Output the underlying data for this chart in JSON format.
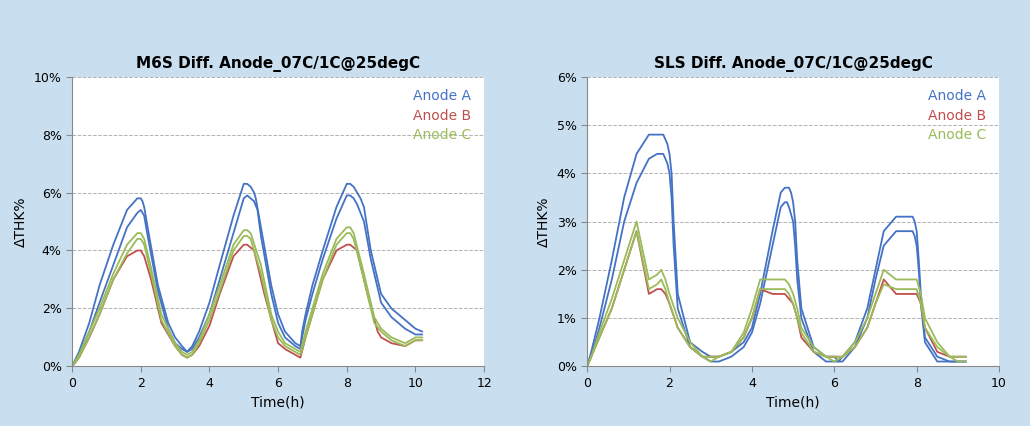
{
  "left_title": "M6S Diff. Anode_07C/1C@25degC",
  "right_title": "SLS Diff. Anode_07C/1C@25degC",
  "xlabel": "Time(h)",
  "ylabel": "ΔTHK%",
  "colors": {
    "A": "#4472C4",
    "B": "#C0504D",
    "C": "#9BBB59"
  },
  "legend_labels": [
    "Anode A",
    "Anode B",
    "Anode C"
  ],
  "background": "#C9DFF0",
  "plot_bg": "#FFFFFF",
  "left": {
    "xlim": [
      0,
      12
    ],
    "ylim": [
      0,
      0.1
    ],
    "yticks": [
      0,
      0.02,
      0.04,
      0.06,
      0.08,
      0.1
    ],
    "xticks": [
      0,
      2,
      4,
      6,
      8,
      10,
      12
    ],
    "series_A1": {
      "x": [
        0,
        0.2,
        0.5,
        0.8,
        1.2,
        1.6,
        1.9,
        2.0,
        2.05,
        2.1,
        2.2,
        2.5,
        2.8,
        3.0,
        3.2,
        3.35,
        3.5,
        3.7,
        4.0,
        4.3,
        4.7,
        5.0,
        5.1,
        5.2,
        5.3,
        5.35,
        5.5,
        5.8,
        6.0,
        6.2,
        6.5,
        6.65,
        6.7,
        6.8,
        7.0,
        7.3,
        7.7,
        8.0,
        8.1,
        8.2,
        8.3,
        8.4,
        8.5,
        8.7,
        9.0,
        9.3,
        9.7,
        10.0,
        10.2
      ],
      "y": [
        0,
        0.005,
        0.015,
        0.028,
        0.042,
        0.054,
        0.058,
        0.058,
        0.057,
        0.055,
        0.048,
        0.028,
        0.015,
        0.01,
        0.007,
        0.005,
        0.007,
        0.012,
        0.022,
        0.035,
        0.052,
        0.063,
        0.063,
        0.062,
        0.06,
        0.058,
        0.048,
        0.028,
        0.018,
        0.012,
        0.008,
        0.007,
        0.012,
        0.018,
        0.028,
        0.04,
        0.055,
        0.063,
        0.063,
        0.062,
        0.06,
        0.058,
        0.055,
        0.04,
        0.025,
        0.02,
        0.016,
        0.013,
        0.012
      ]
    },
    "series_A2": {
      "x": [
        0,
        0.2,
        0.5,
        0.8,
        1.2,
        1.6,
        1.9,
        2.0,
        2.1,
        2.2,
        2.5,
        2.8,
        3.0,
        3.2,
        3.35,
        3.5,
        3.7,
        4.0,
        4.3,
        4.7,
        5.0,
        5.1,
        5.2,
        5.3,
        5.4,
        5.5,
        5.8,
        6.0,
        6.2,
        6.5,
        6.65,
        6.7,
        6.8,
        7.0,
        7.3,
        7.7,
        8.0,
        8.1,
        8.2,
        8.3,
        8.4,
        8.5,
        8.7,
        9.0,
        9.3,
        9.7,
        10.0,
        10.2
      ],
      "y": [
        0,
        0.004,
        0.012,
        0.022,
        0.035,
        0.048,
        0.053,
        0.054,
        0.052,
        0.045,
        0.026,
        0.013,
        0.008,
        0.006,
        0.005,
        0.006,
        0.01,
        0.018,
        0.03,
        0.046,
        0.058,
        0.059,
        0.058,
        0.057,
        0.054,
        0.045,
        0.025,
        0.015,
        0.01,
        0.007,
        0.006,
        0.01,
        0.016,
        0.025,
        0.037,
        0.051,
        0.059,
        0.059,
        0.058,
        0.056,
        0.053,
        0.05,
        0.037,
        0.022,
        0.017,
        0.013,
        0.011,
        0.011
      ]
    },
    "series_B": {
      "x": [
        0,
        0.2,
        0.5,
        0.8,
        1.2,
        1.6,
        1.9,
        2.0,
        2.1,
        2.3,
        2.6,
        3.0,
        3.2,
        3.35,
        3.5,
        3.7,
        4.0,
        4.3,
        4.7,
        5.0,
        5.1,
        5.3,
        5.6,
        5.9,
        6.0,
        6.2,
        6.5,
        6.65,
        6.8,
        7.0,
        7.3,
        7.7,
        8.0,
        8.1,
        8.3,
        8.6,
        8.9,
        9.0,
        9.3,
        9.7,
        10.0,
        10.2
      ],
      "y": [
        0,
        0.003,
        0.01,
        0.018,
        0.03,
        0.038,
        0.04,
        0.04,
        0.038,
        0.03,
        0.015,
        0.007,
        0.004,
        0.003,
        0.004,
        0.007,
        0.014,
        0.025,
        0.038,
        0.042,
        0.042,
        0.04,
        0.025,
        0.012,
        0.008,
        0.006,
        0.004,
        0.003,
        0.01,
        0.018,
        0.03,
        0.04,
        0.042,
        0.042,
        0.04,
        0.025,
        0.012,
        0.01,
        0.008,
        0.007,
        0.009,
        0.009
      ]
    },
    "series_C1": {
      "x": [
        0,
        0.2,
        0.5,
        0.8,
        1.2,
        1.6,
        1.9,
        2.0,
        2.1,
        2.3,
        2.6,
        3.0,
        3.2,
        3.35,
        3.5,
        3.7,
        4.0,
        4.3,
        4.7,
        5.0,
        5.1,
        5.2,
        5.5,
        5.8,
        6.0,
        6.2,
        6.5,
        6.65,
        6.8,
        7.0,
        7.3,
        7.7,
        8.0,
        8.1,
        8.2,
        8.5,
        8.8,
        9.0,
        9.3,
        9.7,
        10.0,
        10.2
      ],
      "y": [
        0,
        0.004,
        0.012,
        0.02,
        0.032,
        0.042,
        0.046,
        0.046,
        0.044,
        0.034,
        0.018,
        0.008,
        0.005,
        0.004,
        0.005,
        0.009,
        0.018,
        0.028,
        0.042,
        0.047,
        0.047,
        0.046,
        0.035,
        0.018,
        0.012,
        0.008,
        0.006,
        0.005,
        0.012,
        0.02,
        0.032,
        0.044,
        0.048,
        0.048,
        0.046,
        0.032,
        0.017,
        0.013,
        0.01,
        0.008,
        0.01,
        0.01
      ]
    },
    "series_C2": {
      "x": [
        0,
        0.2,
        0.5,
        0.8,
        1.2,
        1.6,
        1.9,
        2.0,
        2.1,
        2.3,
        2.6,
        3.0,
        3.2,
        3.35,
        3.5,
        3.7,
        4.0,
        4.3,
        4.7,
        5.0,
        5.1,
        5.2,
        5.5,
        5.8,
        6.0,
        6.2,
        6.5,
        6.65,
        6.8,
        7.0,
        7.3,
        7.7,
        8.0,
        8.1,
        8.2,
        8.5,
        8.8,
        9.0,
        9.3,
        9.7,
        10.0,
        10.2
      ],
      "y": [
        0,
        0.003,
        0.01,
        0.018,
        0.03,
        0.039,
        0.044,
        0.044,
        0.042,
        0.032,
        0.016,
        0.007,
        0.004,
        0.003,
        0.004,
        0.008,
        0.016,
        0.026,
        0.04,
        0.045,
        0.045,
        0.044,
        0.032,
        0.016,
        0.01,
        0.007,
        0.005,
        0.004,
        0.01,
        0.018,
        0.03,
        0.042,
        0.046,
        0.046,
        0.044,
        0.03,
        0.015,
        0.012,
        0.009,
        0.007,
        0.009,
        0.009
      ]
    }
  },
  "right": {
    "xlim": [
      0,
      10
    ],
    "ylim": [
      0,
      0.06
    ],
    "yticks": [
      0,
      0.01,
      0.02,
      0.03,
      0.04,
      0.05,
      0.06
    ],
    "xticks": [
      0,
      2,
      4,
      6,
      8,
      10
    ],
    "series_A1": {
      "x": [
        0,
        0.1,
        0.3,
        0.6,
        0.9,
        1.2,
        1.5,
        1.7,
        1.8,
        1.85,
        1.9,
        1.95,
        2.0,
        2.05,
        2.1,
        2.2,
        2.5,
        2.8,
        3.0,
        3.2,
        3.5,
        3.8,
        4.0,
        4.2,
        4.5,
        4.7,
        4.8,
        4.85,
        4.9,
        4.95,
        5.0,
        5.05,
        5.1,
        5.2,
        5.5,
        5.8,
        6.0,
        6.1,
        6.2,
        6.5,
        6.8,
        7.0,
        7.2,
        7.5,
        7.8,
        7.9,
        7.95,
        8.0,
        8.05,
        8.1,
        8.2,
        8.5,
        8.8,
        9.0,
        9.2
      ],
      "y": [
        0,
        0.003,
        0.01,
        0.022,
        0.035,
        0.044,
        0.048,
        0.048,
        0.048,
        0.048,
        0.047,
        0.046,
        0.044,
        0.04,
        0.03,
        0.015,
        0.005,
        0.003,
        0.002,
        0.002,
        0.003,
        0.005,
        0.008,
        0.015,
        0.028,
        0.036,
        0.037,
        0.037,
        0.037,
        0.036,
        0.034,
        0.03,
        0.022,
        0.012,
        0.004,
        0.002,
        0.002,
        0.001,
        0.002,
        0.005,
        0.012,
        0.02,
        0.028,
        0.031,
        0.031,
        0.031,
        0.03,
        0.028,
        0.022,
        0.015,
        0.006,
        0.002,
        0.001,
        0.001,
        0.001
      ]
    },
    "series_A2": {
      "x": [
        0,
        0.1,
        0.3,
        0.6,
        0.9,
        1.2,
        1.5,
        1.7,
        1.8,
        1.85,
        1.9,
        1.95,
        2.0,
        2.05,
        2.1,
        2.2,
        2.5,
        2.8,
        3.0,
        3.2,
        3.5,
        3.8,
        4.0,
        4.2,
        4.5,
        4.7,
        4.8,
        4.85,
        4.9,
        5.0,
        5.05,
        5.1,
        5.2,
        5.5,
        5.8,
        6.0,
        6.1,
        6.2,
        6.5,
        6.8,
        7.0,
        7.2,
        7.5,
        7.8,
        7.9,
        7.95,
        8.0,
        8.05,
        8.1,
        8.2,
        8.5,
        8.8,
        9.0,
        9.2
      ],
      "y": [
        0,
        0.002,
        0.008,
        0.018,
        0.03,
        0.038,
        0.043,
        0.044,
        0.044,
        0.044,
        0.043,
        0.042,
        0.04,
        0.035,
        0.025,
        0.012,
        0.004,
        0.002,
        0.001,
        0.001,
        0.002,
        0.004,
        0.007,
        0.013,
        0.025,
        0.033,
        0.034,
        0.034,
        0.033,
        0.03,
        0.025,
        0.018,
        0.01,
        0.003,
        0.001,
        0.001,
        0.001,
        0.001,
        0.004,
        0.01,
        0.018,
        0.025,
        0.028,
        0.028,
        0.028,
        0.027,
        0.025,
        0.02,
        0.013,
        0.005,
        0.001,
        0.001,
        0.001,
        0.001
      ]
    },
    "series_B": {
      "x": [
        0,
        0.1,
        0.3,
        0.6,
        0.9,
        1.2,
        1.5,
        1.7,
        1.8,
        1.9,
        2.0,
        2.2,
        2.5,
        2.8,
        3.0,
        3.2,
        3.5,
        3.8,
        4.0,
        4.2,
        4.5,
        4.7,
        4.8,
        4.9,
        5.0,
        5.1,
        5.2,
        5.5,
        5.8,
        6.0,
        6.2,
        6.5,
        6.8,
        7.0,
        7.2,
        7.5,
        7.8,
        7.9,
        8.0,
        8.1,
        8.2,
        8.5,
        8.8,
        9.0,
        9.2
      ],
      "y": [
        0,
        0.002,
        0.006,
        0.012,
        0.02,
        0.028,
        0.015,
        0.016,
        0.016,
        0.015,
        0.013,
        0.008,
        0.004,
        0.002,
        0.002,
        0.002,
        0.003,
        0.006,
        0.01,
        0.016,
        0.015,
        0.015,
        0.015,
        0.014,
        0.013,
        0.01,
        0.006,
        0.003,
        0.002,
        0.002,
        0.002,
        0.004,
        0.008,
        0.013,
        0.018,
        0.015,
        0.015,
        0.015,
        0.015,
        0.013,
        0.008,
        0.003,
        0.002,
        0.002,
        0.002
      ]
    },
    "series_C1": {
      "x": [
        0,
        0.1,
        0.3,
        0.6,
        0.9,
        1.2,
        1.5,
        1.7,
        1.8,
        1.9,
        2.0,
        2.2,
        2.5,
        2.8,
        3.0,
        3.2,
        3.5,
        3.8,
        4.0,
        4.2,
        4.5,
        4.7,
        4.8,
        4.9,
        5.0,
        5.1,
        5.2,
        5.5,
        5.8,
        6.0,
        6.2,
        6.5,
        6.8,
        7.0,
        7.2,
        7.5,
        7.8,
        7.9,
        8.0,
        8.1,
        8.2,
        8.5,
        8.8,
        9.0,
        9.2
      ],
      "y": [
        0,
        0.002,
        0.007,
        0.014,
        0.022,
        0.03,
        0.018,
        0.019,
        0.02,
        0.018,
        0.015,
        0.01,
        0.005,
        0.002,
        0.002,
        0.002,
        0.003,
        0.007,
        0.012,
        0.018,
        0.018,
        0.018,
        0.018,
        0.017,
        0.015,
        0.012,
        0.008,
        0.004,
        0.002,
        0.002,
        0.002,
        0.005,
        0.01,
        0.015,
        0.02,
        0.018,
        0.018,
        0.018,
        0.018,
        0.015,
        0.01,
        0.005,
        0.002,
        0.002,
        0.002
      ]
    },
    "series_C2": {
      "x": [
        0,
        0.1,
        0.3,
        0.6,
        0.9,
        1.2,
        1.5,
        1.7,
        1.8,
        1.9,
        2.0,
        2.2,
        2.5,
        2.8,
        3.0,
        3.2,
        3.5,
        3.8,
        4.0,
        4.2,
        4.5,
        4.7,
        4.8,
        4.9,
        5.0,
        5.1,
        5.2,
        5.5,
        5.8,
        6.0,
        6.2,
        6.5,
        6.8,
        7.0,
        7.2,
        7.5,
        7.8,
        7.9,
        8.0,
        8.1,
        8.2,
        8.5,
        8.8,
        9.0,
        9.2
      ],
      "y": [
        0,
        0.002,
        0.006,
        0.012,
        0.02,
        0.028,
        0.016,
        0.017,
        0.018,
        0.016,
        0.013,
        0.008,
        0.004,
        0.002,
        0.001,
        0.002,
        0.003,
        0.006,
        0.01,
        0.016,
        0.016,
        0.016,
        0.016,
        0.015,
        0.013,
        0.01,
        0.007,
        0.003,
        0.002,
        0.001,
        0.002,
        0.004,
        0.008,
        0.013,
        0.017,
        0.016,
        0.016,
        0.016,
        0.016,
        0.013,
        0.008,
        0.004,
        0.002,
        0.001,
        0.001
      ]
    }
  }
}
